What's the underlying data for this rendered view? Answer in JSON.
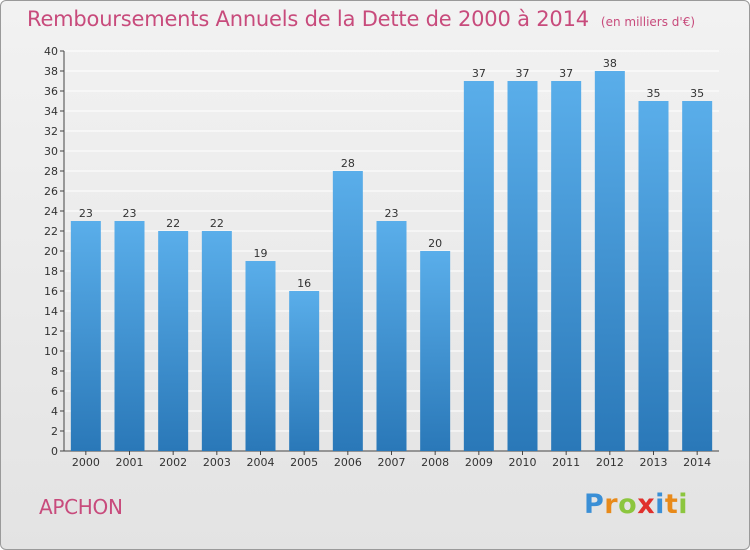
{
  "title": "Remboursements Annuels de la Dette de 2000 à 2014",
  "unit_note": "(en milliers d'€)",
  "town": "APCHON",
  "logo": {
    "text": "Proxiti",
    "letters": [
      {
        "ch": "P",
        "color": "#3a8fd6"
      },
      {
        "ch": "r",
        "color": "#e88a1a"
      },
      {
        "ch": "o",
        "color": "#8cc63e"
      },
      {
        "ch": "x",
        "color": "#e0302c"
      },
      {
        "ch": "i",
        "color": "#3a8fd6"
      },
      {
        "ch": "t",
        "color": "#e88a1a"
      },
      {
        "ch": "i",
        "color": "#8cc63e"
      }
    ]
  },
  "colors": {
    "title": "#c84b7c",
    "bar_top": "#5aaeea",
    "bar_bottom": "#2a78b8",
    "grid": "#ffffff",
    "axis": "#444444"
  },
  "chart_data": {
    "type": "bar",
    "title": "Remboursements Annuels de la Dette de 2000 à 2014",
    "subtitle": "(en milliers d'€)",
    "xlabel": "",
    "ylabel": "",
    "categories": [
      "2000",
      "2001",
      "2002",
      "2003",
      "2004",
      "2005",
      "2006",
      "2007",
      "2008",
      "2009",
      "2010",
      "2011",
      "2012",
      "2013",
      "2014"
    ],
    "values": [
      23,
      23,
      22,
      22,
      19,
      16,
      28,
      23,
      20,
      37,
      37,
      37,
      38,
      35,
      35
    ],
    "ylim": [
      0,
      40
    ],
    "ytick_step": 2,
    "grid": true,
    "data_labels": true
  }
}
